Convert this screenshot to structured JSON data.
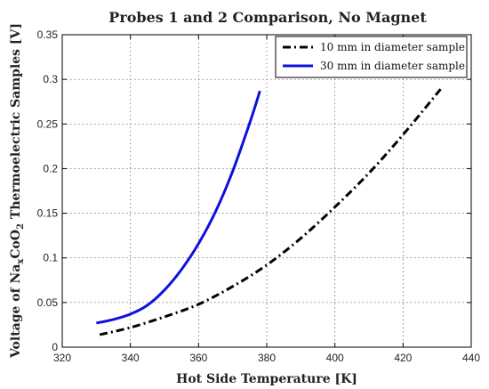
{
  "chart_data": {
    "type": "line",
    "title": "Probes 1 and 2 Comparison, No Magnet",
    "xlabel": "Hot Side Temperature [K]",
    "ylabel": {
      "prefix": "Voltage of Na",
      "sub1": "x",
      "middle": "CoO",
      "sub2": "2",
      "suffix": " Thermoelectric Samples [V]"
    },
    "xlim": [
      320,
      440
    ],
    "ylim": [
      0,
      0.35
    ],
    "xticks": [
      "320",
      "340",
      "360",
      "380",
      "400",
      "420",
      "440"
    ],
    "yticks": [
      "0",
      "0.05",
      "0.1",
      "0.15",
      "0.2",
      "0.25",
      "0.3",
      "0.35"
    ],
    "grid": true,
    "legend_position": "top-right",
    "series": [
      {
        "name": "10 mm in diameter sample",
        "color": "#000000",
        "style": "dash-dot",
        "x": [
          331,
          340,
          350,
          360,
          370,
          380,
          390,
          400,
          410,
          420,
          431
        ],
        "y": [
          0.014,
          0.022,
          0.034,
          0.048,
          0.068,
          0.092,
          0.122,
          0.157,
          0.195,
          0.238,
          0.289
        ]
      },
      {
        "name": "30 mm in diameter sample",
        "color": "#1010dd",
        "style": "solid",
        "x": [
          330,
          335,
          340,
          345,
          350,
          355,
          360,
          365,
          370,
          375,
          378
        ],
        "y": [
          0.027,
          0.031,
          0.037,
          0.047,
          0.064,
          0.087,
          0.116,
          0.152,
          0.197,
          0.251,
          0.287
        ]
      }
    ]
  }
}
